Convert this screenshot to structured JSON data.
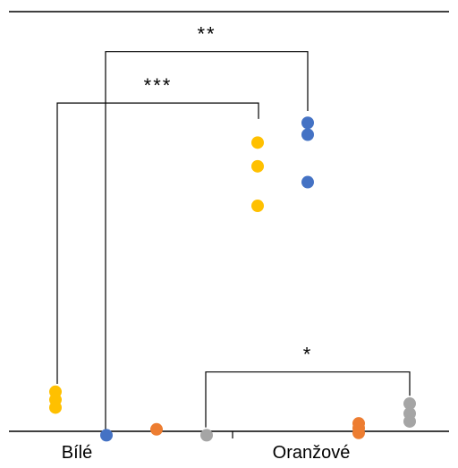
{
  "chart_data": {
    "type": "scatter",
    "title": "",
    "xlabel": "",
    "ylabel": "",
    "categories": [
      "Bílé",
      "Oranžové"
    ],
    "y_range": [
      0,
      100
    ],
    "axis_y_value": 0,
    "grid": false,
    "legend": "none",
    "series": [
      {
        "color": "#FFC000",
        "points": [
          {
            "x": "Bílé",
            "offset": -2,
            "y": 10
          },
          {
            "x": "Bílé",
            "offset": -2,
            "y": 8
          },
          {
            "x": "Bílé",
            "offset": -2,
            "y": 6
          },
          {
            "x": "Oranžové",
            "offset": -2,
            "y": 73
          },
          {
            "x": "Oranžové",
            "offset": -2,
            "y": 67
          },
          {
            "x": "Oranžové",
            "offset": -2,
            "y": 57
          }
        ]
      },
      {
        "color": "#4472C4",
        "points": [
          {
            "x": "Bílé",
            "offset": -1,
            "y": -1
          },
          {
            "x": "Oranžové",
            "offset": -1,
            "y": 78
          },
          {
            "x": "Oranžové",
            "offset": -1,
            "y": 75
          },
          {
            "x": "Oranžové",
            "offset": -1,
            "y": 63
          }
        ]
      },
      {
        "color": "#ED7D31",
        "points": [
          {
            "x": "Bílé",
            "offset": 1,
            "y": 0.5
          },
          {
            "x": "Oranžové",
            "offset": 1,
            "y": 2
          },
          {
            "x": "Oranžové",
            "offset": 1,
            "y": 0.8
          },
          {
            "x": "Oranžové",
            "offset": 1,
            "y": -0.4
          }
        ]
      },
      {
        "color": "#A5A5A5",
        "points": [
          {
            "x": "Bílé",
            "offset": 2,
            "y": -1
          },
          {
            "x": "Oranžové",
            "offset": 2,
            "y": 7
          },
          {
            "x": "Oranžové",
            "offset": 2,
            "y": 4.5
          },
          {
            "x": "Oranžové",
            "offset": 2,
            "y": 2.5
          }
        ]
      }
    ],
    "significance": [
      {
        "label": "**",
        "from": {
          "x": "Bílé",
          "offset": -1
        },
        "to": {
          "x": "Oranžové",
          "offset": -1
        },
        "from_y": -1,
        "to_y": 81,
        "bar_y": 96
      },
      {
        "label": "***",
        "from": {
          "x": "Bílé",
          "offset": -2
        },
        "to": {
          "x": "Oranžové",
          "offset": -2
        },
        "from_y": 12,
        "to_y": 79,
        "bar_y": 83
      },
      {
        "label": "*",
        "from": {
          "x": "Bílé",
          "offset": 2
        },
        "to": {
          "x": "Oranžové",
          "offset": 2
        },
        "from_y": 1,
        "to_y": 9,
        "bar_y": 15
      }
    ]
  }
}
